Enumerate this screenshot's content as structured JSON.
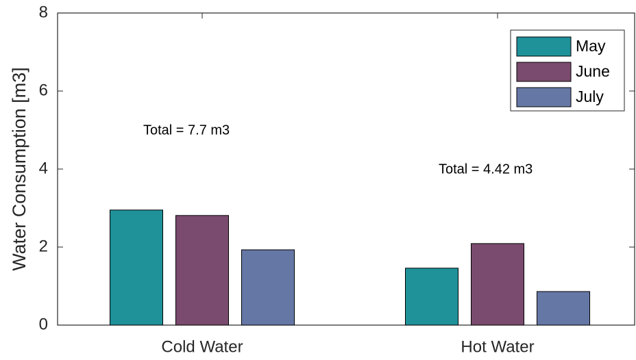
{
  "chart_data": {
    "type": "bar",
    "ylabel": "Water Consumption [m3]",
    "categories": [
      "Cold Water",
      "Hot Water"
    ],
    "series": [
      {
        "name": "May",
        "color": "#1f9199",
        "values": [
          2.95,
          1.46
        ]
      },
      {
        "name": "June",
        "color": "#7a4b6e",
        "values": [
          2.81,
          2.09
        ]
      },
      {
        "name": "July",
        "color": "#6577a5",
        "values": [
          1.93,
          0.86
        ]
      }
    ],
    "annotations": [
      "Total = 7.7 m3",
      "Total = 4.42 m3"
    ],
    "ylim": [
      0,
      8
    ],
    "yticks": [
      0,
      2,
      4,
      6,
      8
    ],
    "legend": "upper right"
  }
}
